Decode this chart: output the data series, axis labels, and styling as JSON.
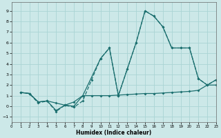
{
  "xlabel": "Humidex (Indice chaleur)",
  "xlim": [
    0,
    23
  ],
  "ylim": [
    -1.5,
    9.8
  ],
  "yticks": [
    -1,
    0,
    1,
    2,
    3,
    4,
    5,
    6,
    7,
    8,
    9
  ],
  "xticks": [
    0,
    1,
    2,
    3,
    4,
    5,
    6,
    7,
    8,
    9,
    10,
    11,
    12,
    13,
    14,
    15,
    16,
    17,
    18,
    19,
    20,
    21,
    22,
    23
  ],
  "bg_color": "#cce8e8",
  "grid_color": "#aad4d4",
  "line_color": "#1a6e6e",
  "line1_x": [
    1,
    2,
    3,
    4,
    5,
    6,
    7,
    8,
    9,
    10,
    11,
    12,
    13,
    14,
    15,
    16,
    17,
    18,
    19,
    20,
    21,
    22,
    23
  ],
  "line1_y": [
    1.3,
    1.2,
    0.4,
    0.5,
    0.3,
    0.1,
    0.4,
    1.0,
    1.0,
    1.0,
    1.0,
    1.05,
    1.1,
    1.15,
    1.2,
    1.2,
    1.25,
    1.3,
    1.35,
    1.4,
    1.5,
    2.0,
    2.0
  ],
  "line2_x": [
    1,
    2,
    3,
    4,
    5,
    6,
    7,
    8,
    9,
    10,
    11,
    12,
    13,
    14,
    15,
    16,
    17,
    18,
    19,
    20,
    21,
    22,
    23
  ],
  "line2_y": [
    1.3,
    1.2,
    0.3,
    0.5,
    -0.5,
    0.1,
    -0.1,
    0.5,
    2.5,
    4.5,
    5.5,
    1.0,
    3.5,
    6.0,
    9.0,
    8.5,
    7.5,
    5.5,
    5.5,
    5.5,
    2.6,
    2.0,
    2.5
  ],
  "line3_x": [
    1,
    2,
    3,
    4,
    5,
    6,
    7,
    8,
    10,
    11,
    12,
    13,
    14,
    15,
    16,
    17,
    18,
    19,
    20,
    21,
    22,
    23
  ],
  "line3_y": [
    1.3,
    1.2,
    0.4,
    0.5,
    -0.4,
    0.1,
    0.0,
    1.0,
    4.5,
    5.5,
    1.0,
    3.5,
    6.0,
    9.0,
    8.5,
    7.5,
    5.5,
    5.5,
    5.5,
    2.6,
    2.0,
    2.5
  ]
}
